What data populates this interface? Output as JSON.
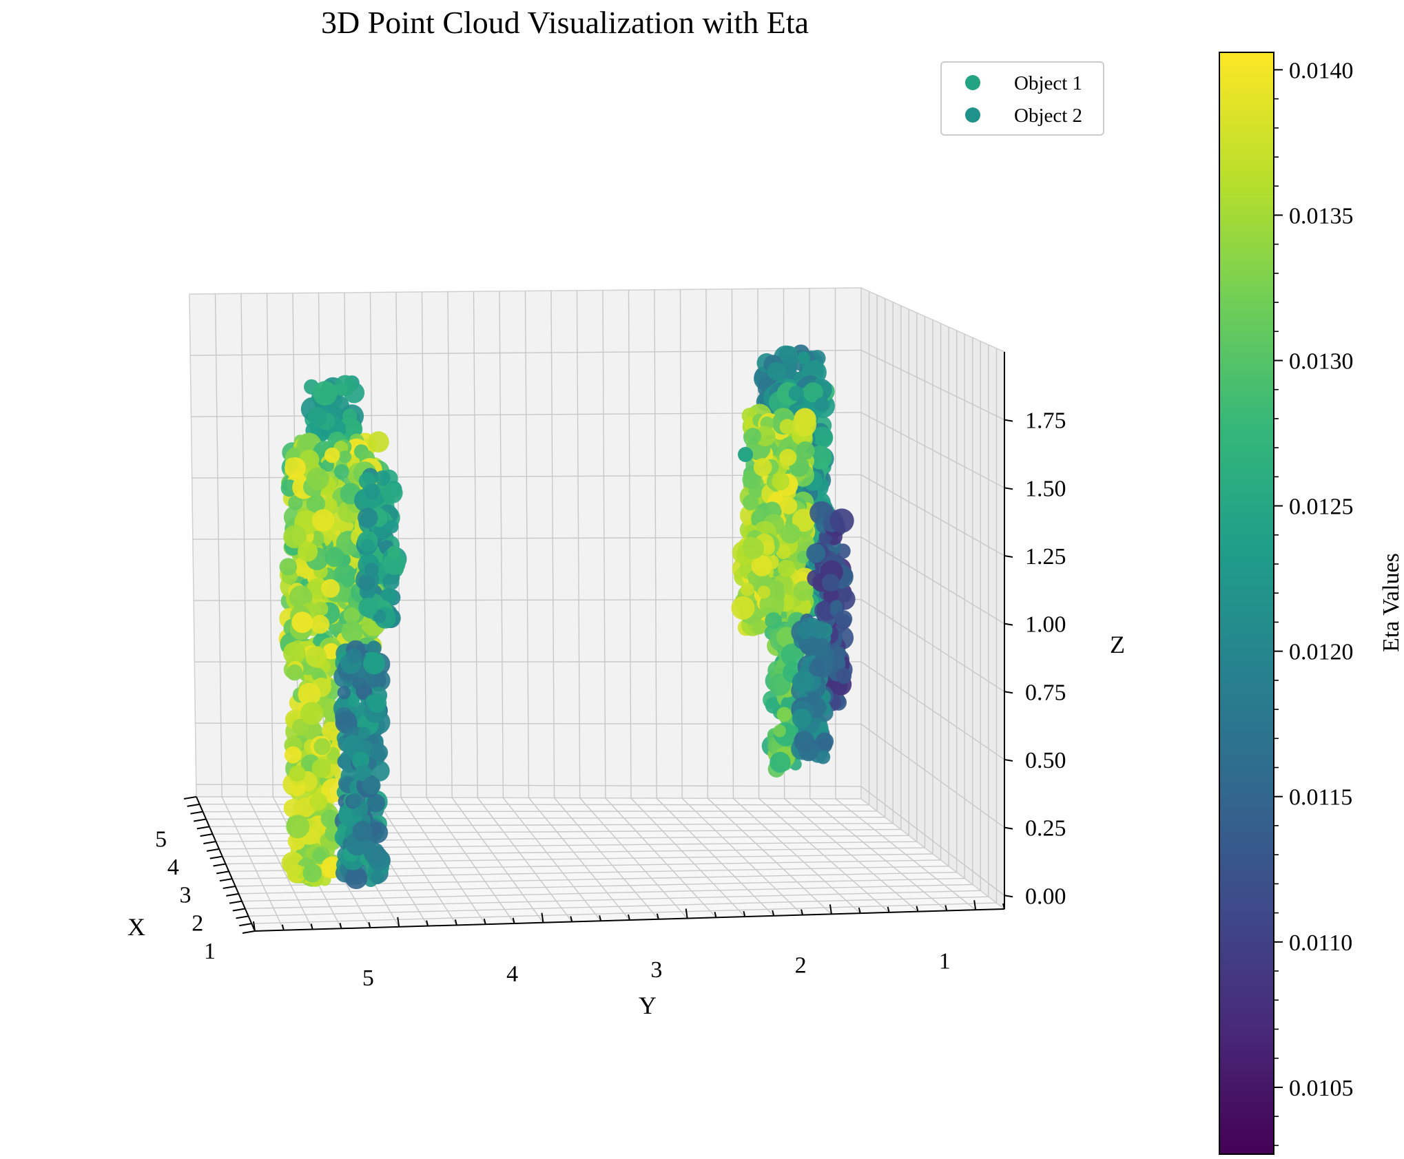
{
  "chart_data": {
    "type": "scatter",
    "title": "3D Point Cloud Visualization with Eta",
    "xlabel": "X",
    "ylabel": "Y",
    "zlabel": "Z",
    "x_ticks": [
      "1",
      "2",
      "3",
      "4",
      "5"
    ],
    "y_ticks": [
      "5",
      "4",
      "3",
      "2",
      "1"
    ],
    "z_ticks": [
      "0.00",
      "0.25",
      "0.50",
      "0.75",
      "1.00",
      "1.25",
      "1.50",
      "1.75"
    ],
    "xlim": [
      0.8,
      5.6
    ],
    "ylim": [
      0.6,
      5.8
    ],
    "zlim": [
      -0.05,
      2.0
    ],
    "grid": true,
    "legend_position": "top-right",
    "series": [
      {
        "name": "Object 1",
        "color": "#24a383",
        "region": {
          "y": [
            5.0,
            5.7
          ],
          "z": [
            0.0,
            1.9
          ]
        },
        "eta_range": [
          0.0118,
          0.014
        ]
      },
      {
        "name": "Object 2",
        "color": "#1f928c",
        "region": {
          "y": [
            1.4,
            2.2
          ],
          "z": [
            0.45,
            2.0
          ]
        },
        "eta_range": [
          0.0108,
          0.014
        ]
      }
    ],
    "colorbar": {
      "label": "Eta Values",
      "range": [
        0.01027,
        0.01406
      ],
      "ticks": [
        "0.0105",
        "0.0110",
        "0.0115",
        "0.0120",
        "0.0125",
        "0.0130",
        "0.0135",
        "0.0140"
      ],
      "colormap": [
        "#440154",
        "#482878",
        "#3e4989",
        "#31688e",
        "#26828e",
        "#1f9e89",
        "#35b779",
        "#6ece58",
        "#b5de2b",
        "#fde725"
      ]
    }
  }
}
